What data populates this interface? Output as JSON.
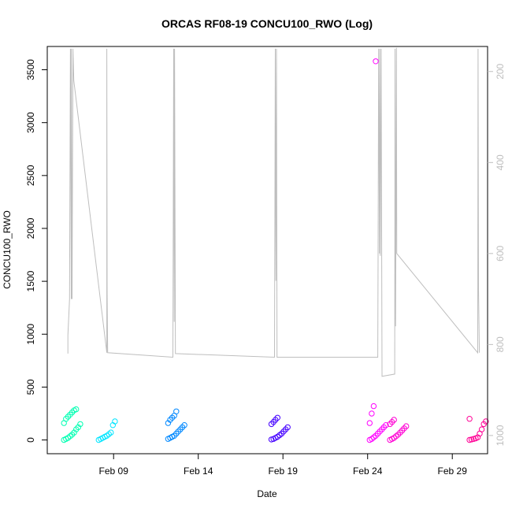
{
  "chart_data": {
    "type": "scatter",
    "title": "ORCAS RF08-19 CONCU100_RWO (Log)",
    "xlabel": "Date",
    "ylabel": "CONCU100_RWO",
    "xlim": [
      "2016-02-05T02:00",
      "2016-03-02T02:00"
    ],
    "ylim": [
      -130,
      3720
    ],
    "y_ticks": [
      0,
      500,
      1000,
      1500,
      2000,
      2500,
      3000,
      3500
    ],
    "x_ticks": [
      {
        "date": "2016-02-09",
        "label": "Feb 09"
      },
      {
        "date": "2016-02-14",
        "label": "Feb 14"
      },
      {
        "date": "2016-02-19",
        "label": "Feb 19"
      },
      {
        "date": "2016-02-24",
        "label": "Feb 24"
      },
      {
        "date": "2016-02-29",
        "label": "Feb 29"
      }
    ],
    "right_axis": {
      "reversed": true,
      "ylim": [
        1040,
        145
      ],
      "ticks": [
        200,
        400,
        600,
        800,
        1000
      ],
      "color": "#bebebe"
    },
    "grid": false,
    "series": [
      {
        "color": "#00ffb2",
        "x_day": 6.55,
        "values": [
          0,
          10,
          20,
          35,
          50,
          70,
          100,
          120,
          150,
          160,
          200,
          220,
          240,
          260,
          280,
          290
        ]
      },
      {
        "color": "#00e5ff",
        "x_day": 8.6,
        "values": [
          0,
          10,
          20,
          30,
          40,
          55,
          70,
          140,
          175
        ]
      },
      {
        "color": "#0088ff",
        "x_day": 12.7,
        "values": [
          10,
          20,
          30,
          40,
          60,
          80,
          100,
          120,
          140,
          160,
          190,
          210,
          230,
          270
        ]
      },
      {
        "color": "#4400ff",
        "x_day": 18.8,
        "values": [
          5,
          10,
          20,
          30,
          45,
          60,
          80,
          100,
          120,
          150,
          170,
          190,
          210
        ]
      },
      {
        "color": "#ff00ff",
        "x_day": 24.6,
        "values": [
          0,
          10,
          25,
          40,
          60,
          80,
          100,
          120,
          140,
          160,
          250,
          320,
          3580
        ]
      },
      {
        "color": "#ff00d4",
        "x_day": 25.8,
        "values": [
          0,
          10,
          20,
          35,
          50,
          70,
          90,
          110,
          130,
          150,
          170,
          190
        ]
      },
      {
        "color": "#ff0095",
        "x_day": 30.5,
        "values": [
          0,
          5,
          10,
          15,
          25,
          60,
          100,
          150,
          175,
          200
        ]
      }
    ],
    "pressure_trace": {
      "color": "#bebebe",
      "points": [
        [
          6.3,
          820
        ],
        [
          6.3,
          780
        ],
        [
          6.4,
          700
        ],
        [
          6.45,
          150
        ],
        [
          6.5,
          700
        ],
        [
          6.5,
          150
        ],
        [
          6.55,
          700
        ],
        [
          6.6,
          150
        ],
        [
          6.65,
          220
        ],
        [
          8.6,
          818
        ],
        [
          8.6,
          150
        ],
        [
          8.62,
          680
        ],
        [
          8.65,
          818
        ],
        [
          12.5,
          828
        ],
        [
          12.55,
          150
        ],
        [
          12.58,
          750
        ],
        [
          12.6,
          150
        ],
        [
          12.65,
          820
        ],
        [
          18.5,
          828
        ],
        [
          18.55,
          150
        ],
        [
          18.58,
          660
        ],
        [
          18.62,
          150
        ],
        [
          18.65,
          828
        ],
        [
          24.6,
          828
        ],
        [
          24.62,
          600
        ],
        [
          24.65,
          150
        ],
        [
          24.7,
          600
        ],
        [
          24.72,
          150
        ],
        [
          24.75,
          605
        ],
        [
          24.8,
          150
        ],
        [
          24.85,
          870
        ],
        [
          25.6,
          865
        ],
        [
          25.62,
          150
        ],
        [
          25.65,
          760
        ],
        [
          25.7,
          148
        ],
        [
          25.72,
          600
        ],
        [
          30.5,
          818
        ],
        [
          30.52,
          150
        ],
        [
          30.55,
          680
        ],
        [
          30.6,
          818
        ]
      ]
    }
  }
}
